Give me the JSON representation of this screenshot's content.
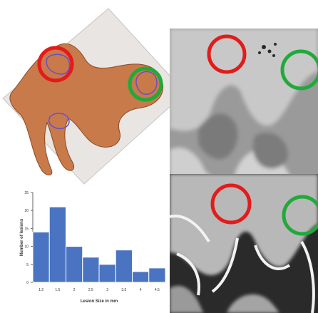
{
  "colors": {
    "tissue": "#c97a4a",
    "slide": "#e6e3e0",
    "lesion_outline": "#6a4fc4",
    "marker_red": "#e31b1b",
    "marker_green": "#1faa3a",
    "bar": "#4a74c2"
  },
  "chart_data": {
    "type": "bar",
    "categories": [
      "1.2",
      "1.5",
      "2",
      "2.5",
      "3",
      "3.5",
      "4",
      "4.5"
    ],
    "values": [
      14,
      21,
      10,
      7,
      5,
      9,
      3,
      4
    ],
    "ylim": [
      0,
      25
    ],
    "yticks": [
      "0",
      "5",
      "10",
      "15",
      "20",
      "25"
    ],
    "xlabel": "Lesion Size in mm",
    "ylabel": "Number of lesions",
    "grid": false
  }
}
